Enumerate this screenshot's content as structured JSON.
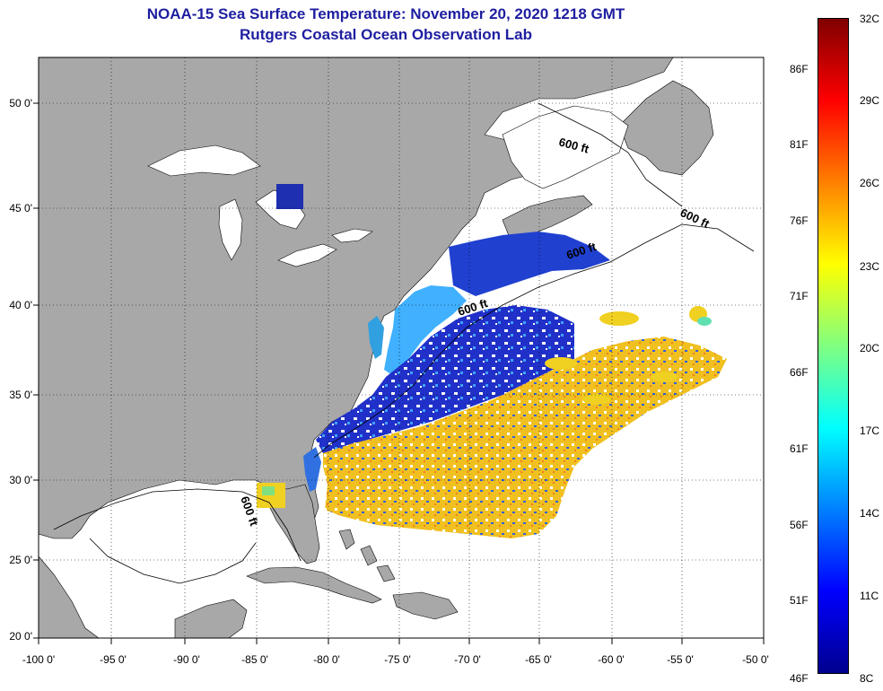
{
  "header": {
    "title_line1": "NOAA-15 Sea Surface Temperature:  November 20, 2020 1218 GMT",
    "title_line2": "Rutgers Coastal Ocean Observation Lab"
  },
  "map": {
    "lat_labels": [
      "50 0'",
      "45 0'",
      "40 0'",
      "35 0'",
      "30 0'",
      "25 0'",
      "20 0'"
    ],
    "lon_labels": [
      "-100 0'",
      "-95 0'",
      "-90 0'",
      "-85 0'",
      "-80 0'",
      "-75 0'",
      "-70 0'",
      "-65 0'",
      "-60 0'",
      "-55 0'",
      "-50 0'"
    ],
    "isobath_labels": [
      "600 ft",
      "600 ft",
      "600 ft",
      "600 ft",
      "600 ft"
    ],
    "colors": {
      "land": "#a8a8a8",
      "no_data": "#ffffff",
      "frame": "#000000"
    }
  },
  "colorbar": {
    "fahrenheit_labels": [
      "86F",
      "81F",
      "76F",
      "71F",
      "66F",
      "61F",
      "56F",
      "51F",
      "46F"
    ],
    "celsius_labels": [
      "32C",
      "29C",
      "26C",
      "23C",
      "20C",
      "17C",
      "14C",
      "11C",
      "8C"
    ],
    "gradient_colors": [
      "#800000",
      "#ff0000",
      "#ff8000",
      "#ffff00",
      "#80ff80",
      "#00ffff",
      "#0080ff",
      "#0000ff",
      "#00008f"
    ]
  }
}
